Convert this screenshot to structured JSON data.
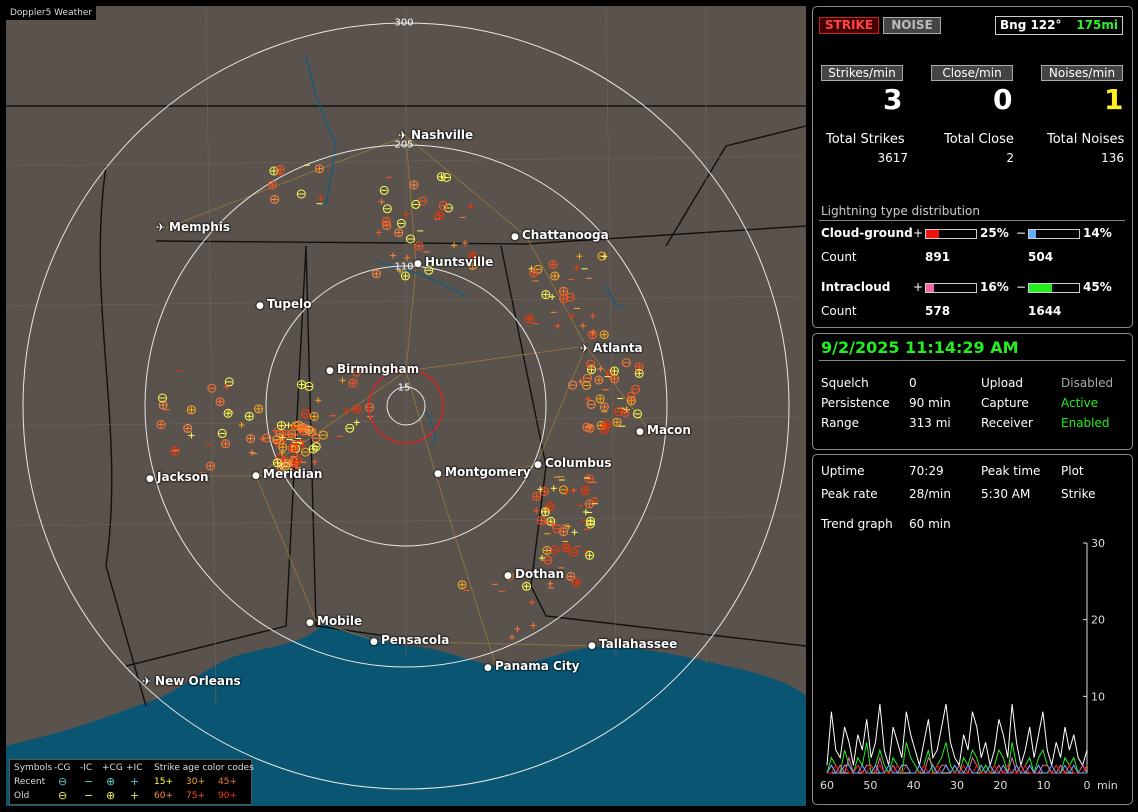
{
  "app_title": "Doppler5 Weather",
  "map": {
    "ring_labels": [
      "300",
      "205",
      "110",
      "15"
    ],
    "cities": [
      {
        "name": "Nashville",
        "airport": true
      },
      {
        "name": "Memphis",
        "airport": true
      },
      {
        "name": "Chattanooga",
        "airport": false
      },
      {
        "name": "Huntsville",
        "airport": false
      },
      {
        "name": "Tupelo",
        "airport": false
      },
      {
        "name": "Atlanta",
        "airport": true
      },
      {
        "name": "Birmingham",
        "airport": false
      },
      {
        "name": "Macon",
        "airport": false
      },
      {
        "name": "Jackson",
        "airport": false
      },
      {
        "name": "Meridian",
        "airport": false
      },
      {
        "name": "Montgomery",
        "airport": false
      },
      {
        "name": "Columbus",
        "airport": false
      },
      {
        "name": "Dothan",
        "airport": false
      },
      {
        "name": "Mobile",
        "airport": false
      },
      {
        "name": "Pensacola",
        "airport": false
      },
      {
        "name": "Tallahassee",
        "airport": false
      },
      {
        "name": "Panama City",
        "airport": false
      },
      {
        "name": "New Orleans",
        "airport": true
      }
    ],
    "legend": {
      "symbols_label": "Symbols",
      "cols": [
        "-CG",
        "-IC",
        "+CG",
        "+IC"
      ],
      "age_label": "Strike age color codes",
      "recent_label": "Recent",
      "old_label": "Old",
      "recent_ages": [
        "15+",
        "30+",
        "45+"
      ],
      "old_ages": [
        "60+",
        "75+",
        "90+"
      ],
      "age_colors": [
        "#ffff55",
        "#ffaa22",
        "#ff7733",
        "#ff8844",
        "#ff5522",
        "#ff3300"
      ]
    }
  },
  "top": {
    "strike_btn": "STRIKE",
    "noise_btn": "NOISE",
    "bearing": "Bng 122°",
    "distance": "175mi",
    "strikes_min_btn": "Strikes/min",
    "close_min_btn": "Close/min",
    "noises_min_btn": "Noises/min",
    "strikes_min": "3",
    "close_min": "0",
    "noises_min": "1",
    "total_strikes_label": "Total Strikes",
    "total_close_label": "Total Close",
    "total_noises_label": "Total Noises",
    "total_strikes": "3617",
    "total_close": "2",
    "total_noises": "136",
    "dist_title": "Lightning type distribution",
    "cg_label": "Cloud-ground",
    "ic_label": "Intracloud",
    "count_label": "Count",
    "plus": "+",
    "minus": "−",
    "cg_pos_pct": "25%",
    "cg_neg_pct": "14%",
    "ic_pos_pct": "16%",
    "ic_neg_pct": "45%",
    "cg_pos_fill": 0.25,
    "cg_neg_fill": 0.14,
    "ic_pos_fill": 0.16,
    "ic_neg_fill": 0.45,
    "cg_pos_count": "891",
    "cg_neg_count": "504",
    "ic_pos_count": "578",
    "ic_neg_count": "1644",
    "colors": {
      "cg_pos": "#ee1111",
      "cg_neg": "#66aaff",
      "ic_pos": "#ee66aa",
      "ic_neg": "#22ee22"
    }
  },
  "status": {
    "datetime": "9/2/2025 11:14:29 AM",
    "squelch_label": "Squelch",
    "squelch": "0",
    "persistence_label": "Persistence",
    "persistence": "90 min",
    "range_label": "Range",
    "range": "313 mi",
    "upload_label": "Upload",
    "upload": "Disabled",
    "capture_label": "Capture",
    "capture": "Active",
    "receiver_label": "Receiver",
    "receiver": "Enabled"
  },
  "stats": {
    "uptime_label": "Uptime",
    "uptime": "70:29",
    "peak_time_label": "Peak time",
    "peak_time": "5:30 AM",
    "plot_label": "Plot",
    "plot": "Strike",
    "peak_rate_label": "Peak rate",
    "peak_rate": "28/min",
    "trend_label": "Trend graph",
    "trend": "60 min"
  },
  "chart_data": {
    "type": "line",
    "x_ticks": [
      "60",
      "50",
      "40",
      "30",
      "20",
      "10",
      "0"
    ],
    "xlabel": "min",
    "y_ticks": [
      "30",
      "20",
      "10"
    ],
    "ylim": [
      0,
      30
    ],
    "xlim": [
      60,
      0
    ],
    "series": [
      {
        "color": "#ffffff",
        "values": [
          1,
          8,
          3,
          2,
          6,
          4,
          1,
          5,
          3,
          7,
          2,
          4,
          9,
          3,
          1,
          6,
          4,
          2,
          8,
          5,
          3,
          1,
          4,
          7,
          2,
          3,
          6,
          9,
          4,
          2,
          1,
          5,
          3,
          8,
          6,
          2,
          4,
          1,
          3,
          7,
          5,
          2,
          9,
          4,
          1,
          3,
          6,
          2,
          5,
          8,
          3,
          1,
          4,
          2,
          6,
          3,
          5,
          2,
          1,
          3
        ]
      },
      {
        "color": "#22ee22",
        "values": [
          0,
          2,
          1,
          0,
          3,
          1,
          0,
          2,
          1,
          4,
          0,
          1,
          3,
          1,
          0,
          2,
          1,
          0,
          4,
          2,
          1,
          0,
          1,
          3,
          0,
          1,
          2,
          4,
          1,
          0,
          0,
          2,
          1,
          3,
          2,
          0,
          1,
          0,
          1,
          3,
          2,
          0,
          4,
          1,
          0,
          1,
          2,
          0,
          2,
          3,
          1,
          0,
          1,
          0,
          2,
          1,
          2,
          0,
          0,
          1
        ]
      },
      {
        "color": "#ee66aa",
        "values": [
          0,
          1,
          0,
          1,
          0,
          2,
          0,
          1,
          0,
          1,
          1,
          0,
          2,
          0,
          0,
          1,
          0,
          1,
          1,
          0,
          0,
          1,
          0,
          2,
          1,
          0,
          1,
          1,
          0,
          0,
          1,
          0,
          0,
          2,
          1,
          0,
          0,
          1,
          0,
          1,
          0,
          0,
          2,
          0,
          1,
          0,
          1,
          0,
          0,
          1,
          1,
          0,
          0,
          1,
          0,
          1,
          0,
          0,
          1,
          0
        ]
      },
      {
        "color": "#ee1111",
        "values": [
          0,
          0,
          1,
          0,
          1,
          0,
          0,
          1,
          0,
          0,
          1,
          0,
          1,
          0,
          0,
          0,
          1,
          0,
          1,
          0,
          0,
          0,
          1,
          0,
          0,
          1,
          0,
          1,
          0,
          0,
          0,
          1,
          0,
          0,
          1,
          0,
          0,
          0,
          1,
          0,
          0,
          1,
          0,
          0,
          0,
          1,
          0,
          0,
          1,
          0,
          0,
          0,
          1,
          0,
          0,
          1,
          0,
          0,
          0,
          1
        ]
      },
      {
        "color": "#66aaff",
        "values": [
          0,
          1,
          0,
          0,
          1,
          1,
          0,
          0,
          1,
          0,
          0,
          1,
          0,
          0,
          1,
          0,
          0,
          1,
          1,
          0,
          0,
          1,
          0,
          0,
          1,
          0,
          0,
          1,
          0,
          1,
          0,
          0,
          1,
          0,
          0,
          1,
          0,
          1,
          0,
          0,
          1,
          0,
          0,
          1,
          0,
          0,
          1,
          0,
          1,
          0,
          0,
          1,
          0,
          0,
          1,
          0,
          1,
          0,
          0,
          0
        ]
      }
    ]
  }
}
